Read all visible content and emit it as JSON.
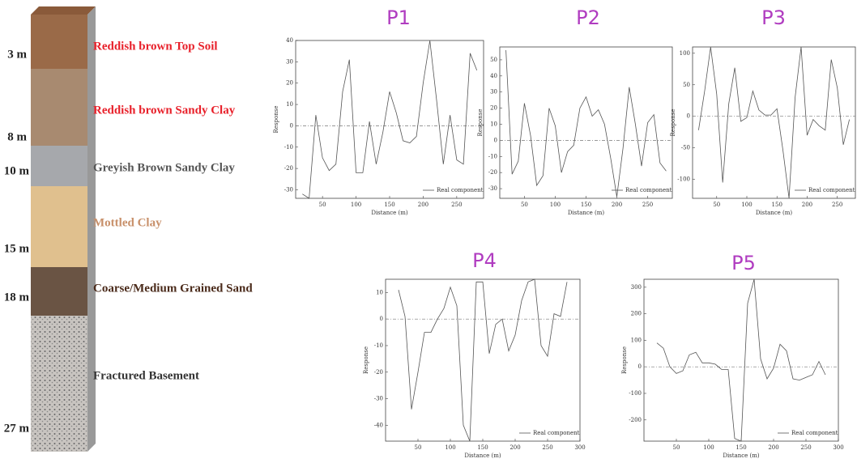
{
  "soil_column": {
    "depth_labels": [
      "3 m",
      "8 m",
      "10 m",
      "15 m",
      "18 m",
      "27 m"
    ],
    "layers": [
      "Reddish brown Top Soil",
      "Reddish brown Sandy Clay",
      "Greyish Brown Sandy Clay",
      "Mottled Clay",
      "Coarse/Medium Grained Sand",
      "Fractured Basement"
    ]
  },
  "chart_data": [
    {
      "type": "line",
      "title": "P1",
      "x_label": "Distance (m)",
      "y_label": "Response",
      "x": [
        20,
        30,
        40,
        50,
        60,
        70,
        80,
        90,
        100,
        110,
        120,
        130,
        140,
        150,
        160,
        170,
        180,
        190,
        200,
        210,
        220,
        230,
        240,
        250,
        260,
        270,
        280
      ],
      "series": [
        {
          "name": "Real component",
          "color": "#555555",
          "values": [
            -32,
            -34,
            5,
            -15,
            -21,
            -18,
            16,
            31,
            -22,
            -22,
            2,
            -18,
            -3,
            16,
            6,
            -7,
            -8,
            -5,
            20,
            40,
            12,
            -18,
            5,
            -16,
            -18,
            34,
            26
          ]
        }
      ],
      "xlim": [
        10,
        290
      ],
      "xticks": [
        50,
        100,
        150,
        200,
        250
      ],
      "ylim": [
        -34,
        40
      ],
      "yticks": [
        -30,
        -20,
        -10,
        0,
        10,
        20,
        30,
        40
      ],
      "reference_line": 0,
      "legend": "lower right"
    },
    {
      "type": "line",
      "title": "P2",
      "x_label": "Distance (m)",
      "y_label": "Response",
      "x": [
        20,
        30,
        40,
        50,
        60,
        70,
        80,
        90,
        100,
        110,
        120,
        130,
        140,
        150,
        160,
        170,
        180,
        190,
        200,
        210,
        220,
        230,
        240,
        250,
        260,
        270,
        280
      ],
      "series": [
        {
          "name": "Real component",
          "color": "#555555",
          "values": [
            56,
            -21,
            -13,
            23,
            3,
            -28,
            -22,
            20,
            9,
            -20,
            -7,
            -3,
            20,
            27,
            15,
            19,
            10,
            -11,
            -35,
            -5,
            33,
            10,
            -16,
            11,
            16,
            -14,
            -19
          ]
        }
      ],
      "xlim": [
        10,
        290
      ],
      "xticks": [
        50,
        100,
        150,
        200,
        250
      ],
      "ylim": [
        -36,
        58
      ],
      "yticks": [
        -30,
        -20,
        -10,
        0,
        10,
        20,
        30,
        40,
        50
      ],
      "reference_line": 0,
      "legend": "lower right"
    },
    {
      "type": "line",
      "title": "P3",
      "x_label": "Distance (m)",
      "y_label": "Response",
      "x": [
        20,
        30,
        40,
        50,
        60,
        70,
        80,
        90,
        100,
        110,
        120,
        130,
        140,
        150,
        160,
        170,
        180,
        190,
        200,
        210,
        220,
        230,
        240,
        250,
        260,
        270
      ],
      "series": [
        {
          "name": "Real component",
          "color": "#555555",
          "values": [
            -22,
            40,
            110,
            35,
            -105,
            20,
            77,
            -8,
            -2,
            40,
            10,
            2,
            2,
            12,
            -55,
            -130,
            30,
            110,
            -30,
            -5,
            -15,
            -22,
            90,
            45,
            -45,
            -5
          ]
        }
      ],
      "xlim": [
        10,
        280
      ],
      "xticks": [
        50,
        100,
        150,
        200,
        250
      ],
      "ylim": [
        -130,
        110
      ],
      "yticks": [
        -100,
        -50,
        0,
        50,
        100
      ],
      "reference_line": 0,
      "legend": "lower right"
    },
    {
      "type": "line",
      "title": "P4",
      "x_label": "Distance (m)",
      "y_label": "Response",
      "x": [
        20,
        30,
        40,
        50,
        60,
        70,
        80,
        90,
        100,
        110,
        120,
        130,
        140,
        150,
        160,
        170,
        180,
        190,
        200,
        210,
        220,
        230,
        240,
        250,
        260,
        270,
        280
      ],
      "series": [
        {
          "name": "Real component",
          "color": "#555555",
          "values": [
            11,
            1,
            -34,
            -20,
            -5,
            -5,
            0,
            4,
            12,
            5,
            -40,
            -46,
            14,
            14,
            -13,
            -2,
            0,
            -12,
            -6,
            7,
            14,
            15,
            -10,
            -14,
            2,
            1,
            14
          ]
        }
      ],
      "xlim": [
        0,
        300
      ],
      "xticks": [
        50,
        100,
        150,
        200,
        250,
        300
      ],
      "ylim": [
        -46,
        15
      ],
      "yticks": [
        -40,
        -30,
        -20,
        -10,
        0,
        10
      ],
      "reference_line": 0,
      "legend": "lower right"
    },
    {
      "type": "line",
      "title": "P5",
      "x_label": "Distance (m)",
      "y_label": "Response",
      "x": [
        20,
        30,
        40,
        50,
        60,
        70,
        80,
        90,
        100,
        110,
        120,
        130,
        140,
        150,
        160,
        170,
        180,
        190,
        200,
        210,
        220,
        230,
        240,
        250,
        260,
        270,
        280
      ],
      "series": [
        {
          "name": "Real component",
          "color": "#555555",
          "values": [
            90,
            70,
            0,
            -25,
            -15,
            45,
            55,
            15,
            15,
            10,
            -10,
            -10,
            -270,
            -280,
            240,
            330,
            30,
            -45,
            -5,
            85,
            60,
            -45,
            -50,
            -40,
            -30,
            20,
            -30
          ]
        }
      ],
      "xlim": [
        0,
        300
      ],
      "xticks": [
        50,
        100,
        150,
        200,
        250,
        300
      ],
      "ylim": [
        -280,
        330
      ],
      "yticks": [
        -200,
        -100,
        0,
        100,
        200,
        300
      ],
      "reference_line": 0,
      "legend": "lower right"
    }
  ]
}
